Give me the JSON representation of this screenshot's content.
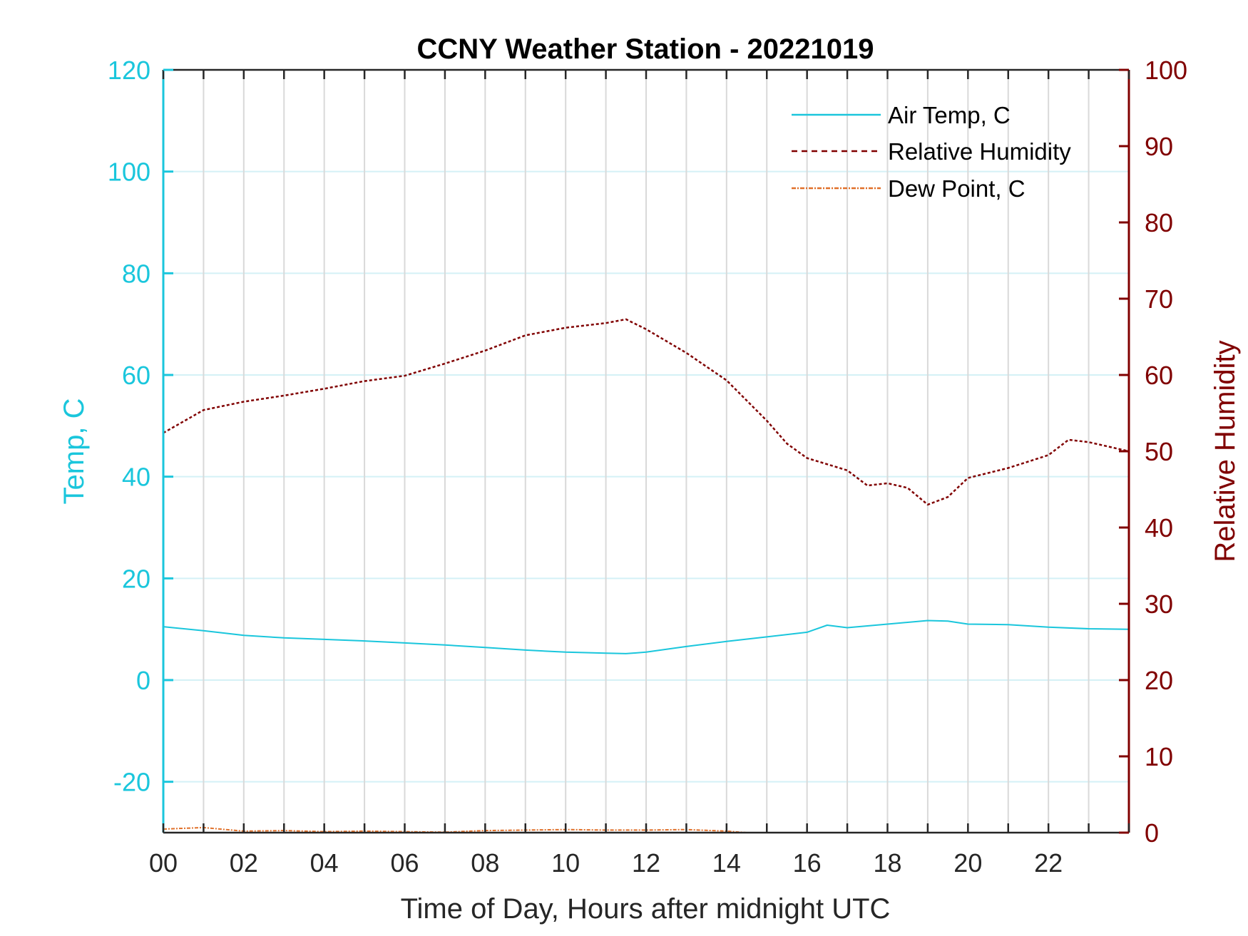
{
  "chart_data": {
    "type": "line",
    "title": "CCNY Weather Station - 20221019",
    "xlabel": "Time of Day, Hours after midnight UTC",
    "ylabel_left": "Temp, C",
    "ylabel_right": "Relative Humidity",
    "xlim": [
      0,
      24
    ],
    "ylim_left": [
      -30,
      120
    ],
    "ylim_right": [
      0,
      100
    ],
    "x_ticks": [
      0,
      2,
      4,
      6,
      8,
      10,
      12,
      14,
      16,
      18,
      20,
      22
    ],
    "x_tick_labels": [
      "00",
      "02",
      "04",
      "06",
      "08",
      "10",
      "12",
      "14",
      "16",
      "18",
      "20",
      "22"
    ],
    "x_minor_gridlines_every_hours": 1,
    "y_ticks_left": [
      120,
      100,
      80,
      60,
      40,
      20,
      0,
      -20
    ],
    "y_tick_labels_left": [
      "120",
      "100",
      "80",
      "60",
      "40",
      "20",
      "0",
      "-20"
    ],
    "y_ticks_right": [
      100,
      90,
      80,
      70,
      60,
      50,
      40,
      30,
      20,
      10,
      0
    ],
    "y_tick_labels_right": [
      "100",
      "90",
      "80",
      "70",
      "60",
      "50",
      "40",
      "30",
      "20",
      "10",
      "0"
    ],
    "grid": true,
    "legend_position": "top-right",
    "colors": {
      "air_temp": "#1ac6dc",
      "relative_humidity": "#800000",
      "dew_point": "#e0702a",
      "left_axis": "#1ac6dc",
      "right_axis": "#800000",
      "grid_vertical": "#d9d9d9",
      "grid_horizontal": "#d4f1f6"
    },
    "series": [
      {
        "name": "Air Temp, C",
        "axis": "left",
        "style": "solid",
        "x": [
          0,
          1,
          2,
          3,
          4,
          5,
          6,
          7,
          8,
          9,
          10,
          11,
          11.5,
          12,
          13,
          14,
          15,
          16,
          16.5,
          17,
          18,
          19,
          19.5,
          20,
          21,
          22,
          23,
          24
        ],
        "y": [
          10.5,
          9.7,
          8.8,
          8.3,
          8.0,
          7.7,
          7.3,
          6.9,
          6.4,
          5.9,
          5.5,
          5.3,
          5.2,
          5.5,
          6.6,
          7.6,
          8.5,
          9.4,
          10.8,
          10.3,
          11.0,
          11.7,
          11.6,
          11.0,
          10.9,
          10.4,
          10.1,
          10.0
        ]
      },
      {
        "name": "Relative Humidity",
        "axis": "right",
        "style": "dashed",
        "x": [
          0,
          1,
          2,
          3,
          4,
          5,
          6,
          7,
          8,
          9,
          10,
          11,
          11.5,
          12,
          13,
          14,
          15,
          15.5,
          16,
          17,
          17.5,
          18,
          18.5,
          19,
          19.5,
          20,
          21,
          22,
          22.5,
          23,
          24
        ],
        "y": [
          52.4,
          55.4,
          56.5,
          57.3,
          58.2,
          59.2,
          59.9,
          61.5,
          63.2,
          65.2,
          66.2,
          66.8,
          67.3,
          66.0,
          62.9,
          59.3,
          54.0,
          51.0,
          49.1,
          47.5,
          45.5,
          45.8,
          45.2,
          43.0,
          44.0,
          46.5,
          47.8,
          49.5,
          51.5,
          51.2,
          50.0
        ]
      },
      {
        "name": "Dew Point, C",
        "axis": "left",
        "style": "dash-dot",
        "x": [
          0,
          1,
          2,
          3,
          4,
          5,
          6,
          7,
          8,
          9,
          10,
          11,
          12,
          13,
          14,
          14.5
        ],
        "y": [
          -29.3,
          -29.0,
          -29.7,
          -29.6,
          -29.8,
          -29.7,
          -29.8,
          -29.9,
          -29.6,
          -29.5,
          -29.4,
          -29.5,
          -29.5,
          -29.4,
          -29.7,
          -30.0
        ]
      }
    ]
  }
}
